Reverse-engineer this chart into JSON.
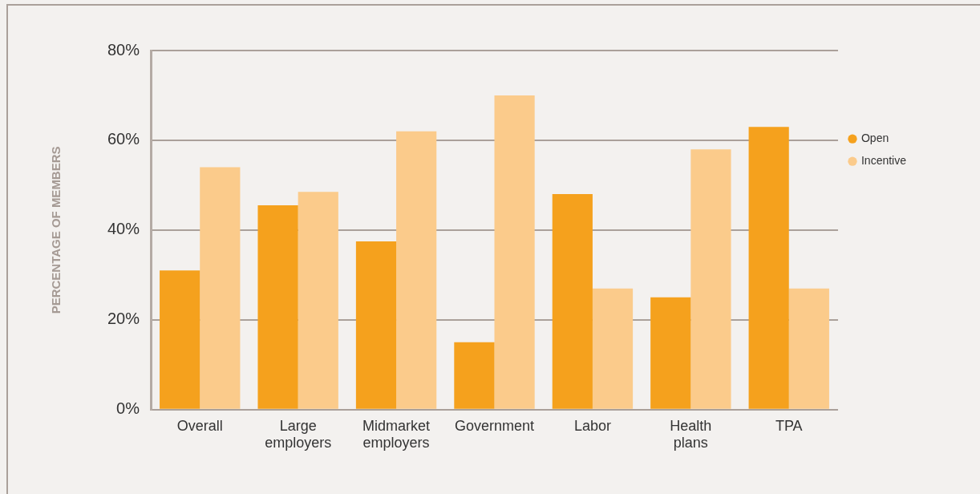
{
  "chart_data": {
    "type": "bar",
    "ylabel": "PERCENTAGE OF MEMBERS",
    "categories": [
      "Overall",
      "Large employers",
      "Midmarket employers",
      "Government",
      "Labor",
      "Health plans",
      "TPA"
    ],
    "series": [
      {
        "name": "Open",
        "color": "#f5a11d",
        "values": [
          31,
          45.5,
          37.5,
          15,
          48,
          25,
          63
        ]
      },
      {
        "name": "Incentive",
        "color": "#fbcb8b",
        "values": [
          54,
          48.5,
          62,
          70,
          27,
          58,
          27
        ]
      }
    ],
    "ylim": [
      0,
      80
    ],
    "yticks": [
      {
        "value": 0,
        "label": "0%"
      },
      {
        "value": 20,
        "label": "20%"
      },
      {
        "value": 40,
        "label": "40%"
      },
      {
        "value": 60,
        "label": "60%"
      },
      {
        "value": 80,
        "label": "80%"
      }
    ],
    "grid": "y",
    "legend": "right"
  }
}
